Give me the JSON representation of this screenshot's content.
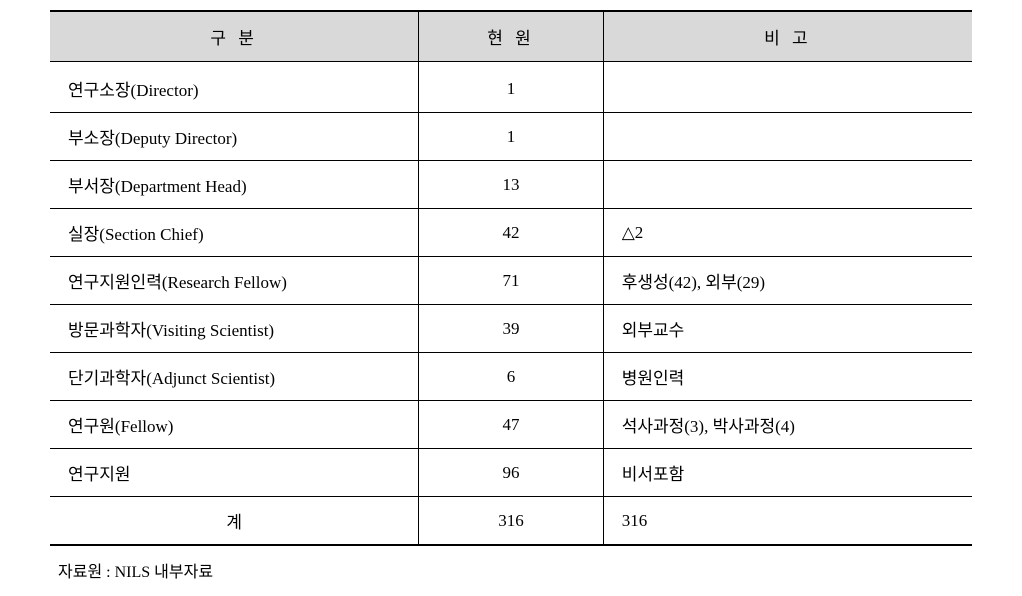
{
  "table": {
    "columns": [
      "구 분",
      "현 원",
      "비 고"
    ],
    "column_widths": [
      "40%",
      "20%",
      "40%"
    ],
    "header_bg": "#d9d9d9",
    "border_color": "#000000",
    "outer_border_width": 2,
    "inner_border_width": 1,
    "cell_fontsize": 17,
    "background_color": "#ffffff",
    "rows": [
      {
        "category": "연구소장(Director)",
        "count": "1",
        "note": ""
      },
      {
        "category": "부소장(Deputy Director)",
        "count": "1",
        "note": ""
      },
      {
        "category": "부서장(Department Head)",
        "count": "13",
        "note": ""
      },
      {
        "category": "실장(Section Chief)",
        "count": "42",
        "note": "△2"
      },
      {
        "category": "연구지원인력(Research Fellow)",
        "count": "71",
        "note": "후생성(42), 외부(29)"
      },
      {
        "category": "방문과학자(Visiting Scientist)",
        "count": "39",
        "note": "외부교수"
      },
      {
        "category": "단기과학자(Adjunct Scientist)",
        "count": "6",
        "note": "병원인력"
      },
      {
        "category": "연구원(Fellow)",
        "count": "47",
        "note": "석사과정(3), 박사과정(4)"
      },
      {
        "category": "연구지원",
        "count": "96",
        "note": "비서포함"
      },
      {
        "category": "계",
        "count": "316",
        "note": "316"
      }
    ]
  },
  "source_note": "자료원 : NILS 내부자료"
}
